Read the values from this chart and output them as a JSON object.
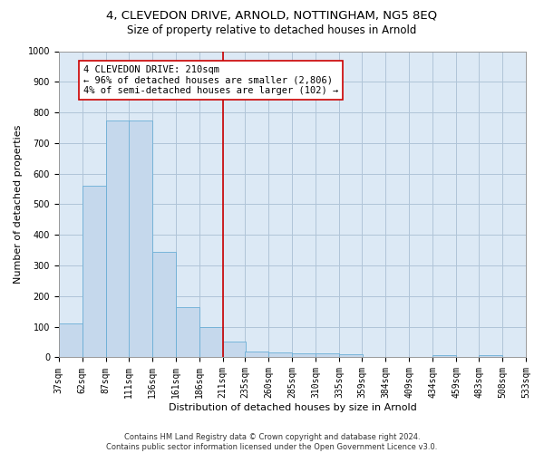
{
  "title": "4, CLEVEDON DRIVE, ARNOLD, NOTTINGHAM, NG5 8EQ",
  "subtitle": "Size of property relative to detached houses in Arnold",
  "xlabel": "Distribution of detached houses by size in Arnold",
  "ylabel": "Number of detached properties",
  "footer_line1": "Contains HM Land Registry data © Crown copyright and database right 2024.",
  "footer_line2": "Contains public sector information licensed under the Open Government Licence v3.0.",
  "bar_color": "#c5d8ec",
  "bar_edge_color": "#6aaed6",
  "property_line_color": "#cc0000",
  "annotation_box_color": "#cc0000",
  "annotation_text": "4 CLEVEDON DRIVE: 210sqm\n← 96% of detached houses are smaller (2,806)\n4% of semi-detached houses are larger (102) →",
  "property_size_bin_index": 7,
  "bin_edges": [
    37,
    62,
    87,
    111,
    136,
    161,
    186,
    211,
    235,
    260,
    285,
    310,
    335,
    359,
    384,
    409,
    434,
    459,
    483,
    508,
    533
  ],
  "bin_labels": [
    "37sqm",
    "62sqm",
    "87sqm",
    "111sqm",
    "136sqm",
    "161sqm",
    "186sqm",
    "211sqm",
    "235sqm",
    "260sqm",
    "285sqm",
    "310sqm",
    "335sqm",
    "359sqm",
    "384sqm",
    "409sqm",
    "434sqm",
    "459sqm",
    "483sqm",
    "508sqm",
    "533sqm"
  ],
  "bar_heights": [
    112,
    560,
    775,
    775,
    345,
    165,
    98,
    53,
    20,
    15,
    14,
    12,
    10,
    0,
    0,
    0,
    8,
    0,
    8,
    0
  ],
  "ylim": [
    0,
    1000
  ],
  "yticks": [
    0,
    100,
    200,
    300,
    400,
    500,
    600,
    700,
    800,
    900,
    1000
  ],
  "background_color": "#ffffff",
  "plot_background_color": "#dce9f5",
  "grid_color": "#b0c4d8",
  "title_fontsize": 9.5,
  "subtitle_fontsize": 8.5,
  "tick_fontsize": 7,
  "ylabel_fontsize": 8,
  "xlabel_fontsize": 8,
  "annotation_fontsize": 7.5,
  "footer_fontsize": 6
}
